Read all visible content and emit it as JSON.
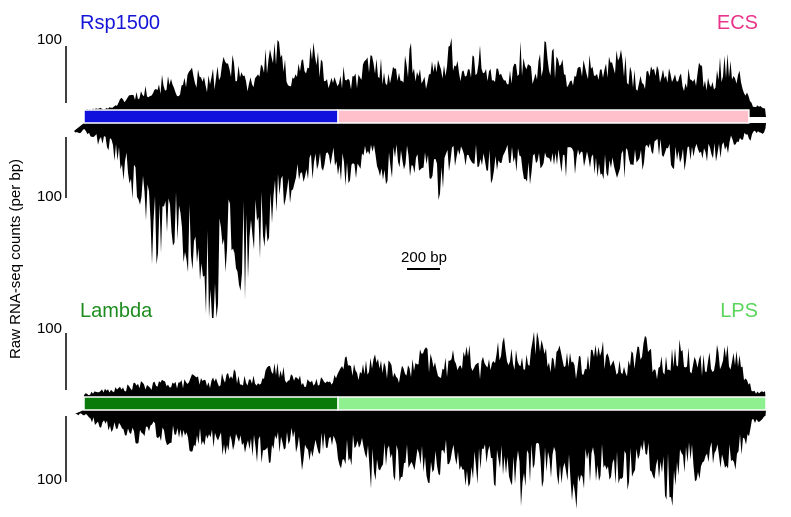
{
  "chart_data": {
    "type": "area",
    "ylabel": "Raw RNA-seq counts (per bp)",
    "scale_bar": {
      "label": "200 bp",
      "length_bp": 200
    },
    "panels": [
      {
        "id": "top",
        "label_left": "Rsp1500",
        "label_right": "ECS",
        "colors": {
          "left_label": "#1515d8",
          "right_label": "#e8348a",
          "left_bar": "#1111dd",
          "right_bar": "#ffc0cb"
        },
        "segments": [
          {
            "name": "Rsp1500",
            "start_bp": 0,
            "end_bp": 745
          },
          {
            "name": "ECS",
            "start_bp": 745,
            "end_bp": 1950
          }
        ],
        "track_start_bp": 0,
        "track_end_bp": 2000,
        "ytick_top": "100",
        "ytick_bottom": "100",
        "y_max_plus": 100,
        "y_max_minus": 100,
        "plus_strand": {
          "bp": [
            0,
            80,
            120,
            160,
            200,
            240,
            280,
            320,
            360,
            400,
            440,
            480,
            520,
            560,
            600,
            640,
            680,
            720,
            760,
            800,
            840,
            880,
            920,
            960,
            1000,
            1040,
            1080,
            1120,
            1160,
            1200,
            1240,
            1280,
            1320,
            1360,
            1400,
            1440,
            1480,
            1520,
            1560,
            1600,
            1640,
            1680,
            1720,
            1760,
            1800,
            1840,
            1880,
            1920,
            1960,
            2000
          ],
          "counts": [
            2,
            5,
            20,
            25,
            35,
            45,
            30,
            55,
            40,
            60,
            75,
            40,
            65,
            95,
            50,
            70,
            85,
            40,
            55,
            45,
            75,
            60,
            55,
            80,
            45,
            70,
            90,
            50,
            80,
            60,
            40,
            85,
            55,
            90,
            65,
            45,
            75,
            55,
            80,
            60,
            40,
            70,
            50,
            45,
            60,
            40,
            80,
            50,
            8,
            5
          ]
        },
        "minus_strand": {
          "bp": [
            0,
            80,
            120,
            160,
            200,
            240,
            280,
            320,
            360,
            380,
            400,
            440,
            480,
            520,
            560,
            600,
            640,
            680,
            720,
            760,
            800,
            840,
            880,
            920,
            960,
            1000,
            1040,
            1080,
            1120,
            1160,
            1200,
            1240,
            1280,
            1320,
            1360,
            1400,
            1440,
            1480,
            1520,
            1560,
            1600,
            1640,
            1680,
            1720,
            1760,
            1800,
            1840,
            1880,
            1920,
            1960,
            2000
          ],
          "counts": [
            5,
            15,
            30,
            40,
            70,
            55,
            60,
            75,
            95,
            180,
            70,
            75,
            85,
            60,
            55,
            40,
            30,
            25,
            20,
            30,
            25,
            15,
            35,
            20,
            25,
            20,
            40,
            20,
            25,
            20,
            30,
            20,
            25,
            30,
            20,
            25,
            25,
            20,
            30,
            35,
            20,
            25,
            15,
            20,
            25,
            15,
            20,
            15,
            10,
            8,
            5
          ]
        }
      },
      {
        "id": "bottom",
        "label_left": "Lambda",
        "label_right": "LPS",
        "colors": {
          "left_label": "#1e8c1e",
          "right_label": "#5ad55a",
          "left_bar": "#0a7a0a",
          "right_bar": "#8ef08e"
        },
        "segments": [
          {
            "name": "Lambda",
            "start_bp": 0,
            "end_bp": 745
          },
          {
            "name": "LPS",
            "start_bp": 745,
            "end_bp": 2000
          }
        ],
        "track_start_bp": 0,
        "track_end_bp": 2000,
        "ytick_top": "100",
        "ytick_bottom": "100",
        "y_max_plus": 100,
        "y_max_minus": 100,
        "plus_strand": {
          "bp": [
            0,
            40,
            80,
            120,
            160,
            200,
            240,
            280,
            320,
            360,
            400,
            440,
            480,
            520,
            560,
            600,
            640,
            680,
            720,
            760,
            800,
            840,
            880,
            920,
            960,
            1000,
            1040,
            1080,
            1120,
            1160,
            1200,
            1240,
            1280,
            1320,
            1360,
            1400,
            1440,
            1480,
            1520,
            1560,
            1600,
            1640,
            1680,
            1720,
            1760,
            1800,
            1840,
            1880,
            1920,
            1960,
            2000
          ],
          "counts": [
            5,
            10,
            12,
            15,
            20,
            18,
            25,
            20,
            30,
            22,
            28,
            35,
            25,
            30,
            45,
            35,
            25,
            30,
            20,
            55,
            40,
            60,
            50,
            35,
            45,
            65,
            40,
            55,
            70,
            45,
            60,
            75,
            50,
            85,
            55,
            70,
            45,
            60,
            75,
            40,
            55,
            80,
            45,
            65,
            70,
            50,
            60,
            75,
            55,
            10,
            8
          ]
        },
        "minus_strand": {
          "bp": [
            0,
            40,
            80,
            120,
            160,
            200,
            240,
            280,
            320,
            360,
            400,
            440,
            480,
            520,
            560,
            600,
            640,
            680,
            720,
            760,
            800,
            840,
            880,
            920,
            960,
            1000,
            1040,
            1080,
            1120,
            1160,
            1200,
            1240,
            1280,
            1320,
            1360,
            1400,
            1440,
            1480,
            1520,
            1560,
            1600,
            1640,
            1680,
            1720,
            1760,
            1800,
            1840,
            1880,
            1920,
            1960,
            2000
          ],
          "counts": [
            5,
            15,
            20,
            25,
            30,
            20,
            35,
            25,
            40,
            30,
            45,
            35,
            40,
            50,
            45,
            30,
            55,
            40,
            35,
            60,
            45,
            70,
            55,
            65,
            50,
            75,
            60,
            55,
            80,
            65,
            70,
            55,
            85,
            60,
            75,
            65,
            90,
            70,
            60,
            80,
            75,
            55,
            65,
            90,
            60,
            70,
            55,
            65,
            50,
            15,
            10
          ]
        }
      }
    ]
  }
}
